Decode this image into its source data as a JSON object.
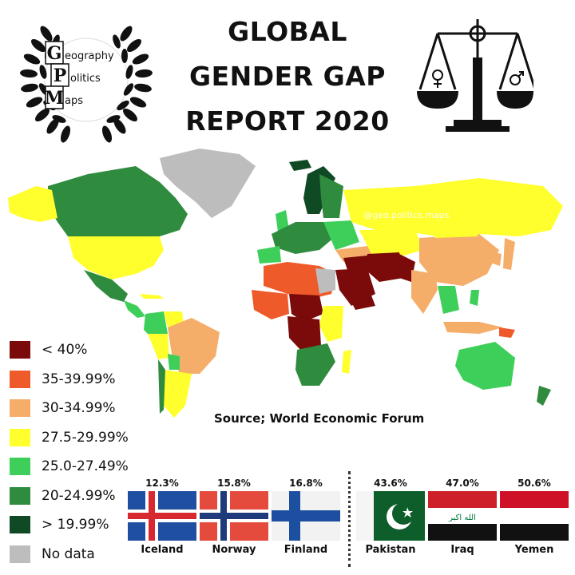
{
  "logo": {
    "letters": [
      "G",
      "P",
      "M"
    ],
    "words": [
      "eography",
      "olitics",
      "aps"
    ]
  },
  "title": {
    "line1": "GLOBAL",
    "line2": "GENDER GAP",
    "line3": "REPORT 2020"
  },
  "watermark": "@geo.politics.maps",
  "source": "Source; World Economic Forum",
  "legend": [
    {
      "label": "< 40%",
      "color": "#7b0a0a"
    },
    {
      "label": "35-39.99%",
      "color": "#ef5a2a"
    },
    {
      "label": "30-34.99%",
      "color": "#f5ad6a"
    },
    {
      "label": "27.5-29.99%",
      "color": "#ffff2e"
    },
    {
      "label": "25.0-27.49%",
      "color": "#3ecf5a"
    },
    {
      "label": "20-24.99%",
      "color": "#2f8b3e"
    },
    {
      "label": "> 19.99%",
      "color": "#0f4a25"
    },
    {
      "label": "No data",
      "color": "#bdbdbd"
    }
  ],
  "flags": [
    {
      "country": "Iceland",
      "value": "12.3%",
      "icon": "iceland-flag"
    },
    {
      "country": "Norway",
      "value": "15.8%",
      "icon": "norway-flag"
    },
    {
      "country": "Finland",
      "value": "16.8%",
      "icon": "finland-flag"
    },
    {
      "country": "Pakistan",
      "value": "43.6%",
      "icon": "pakistan-flag"
    },
    {
      "country": "Iraq",
      "value": "47.0%",
      "icon": "iraq-flag"
    },
    {
      "country": "Yemen",
      "value": "50.6%",
      "icon": "yemen-flag"
    }
  ],
  "iraq_flag_text": "الله اكبر"
}
